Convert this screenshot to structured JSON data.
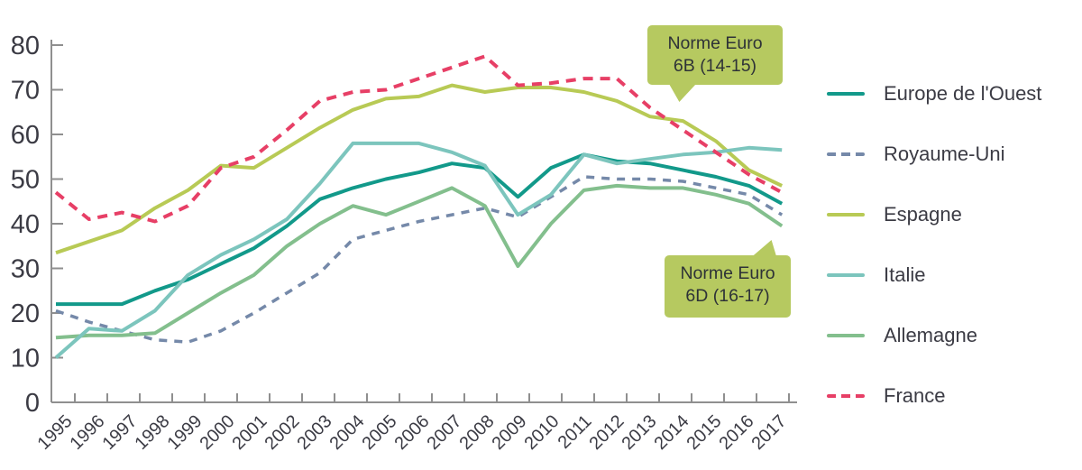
{
  "chart_data": {
    "type": "line",
    "title": "",
    "xlabel": "",
    "ylabel": "",
    "ylim": [
      0,
      80
    ],
    "yticks": [
      0,
      10,
      20,
      30,
      40,
      50,
      60,
      70,
      80
    ],
    "grid": false,
    "legend_position": "right",
    "x": [
      "1995",
      "1996",
      "1997",
      "1998",
      "1999",
      "2000",
      "2001",
      "2002",
      "2003",
      "2004",
      "2005",
      "2006",
      "2007",
      "2008",
      "2009",
      "2010",
      "2011",
      "2012",
      "2013",
      "2014",
      "2015",
      "2016",
      "2017"
    ],
    "series": [
      {
        "name": "Europe de l'Ouest",
        "color": "#12998a",
        "style": "solid",
        "width": 4,
        "values": [
          22,
          22,
          22,
          25,
          27.5,
          31,
          34.5,
          39.5,
          45.5,
          48,
          50,
          51.5,
          53.5,
          52.5,
          46,
          52.5,
          55.5,
          54,
          53.5,
          52,
          50.5,
          48.5,
          44.5
        ]
      },
      {
        "name": "Royaume-Uni",
        "color": "#7589a9",
        "style": "dashed",
        "width": 3.5,
        "values": [
          20.5,
          18,
          16,
          14,
          13.5,
          16,
          20,
          24.5,
          29,
          36.5,
          38.5,
          40.5,
          42,
          43.5,
          41.5,
          46,
          50.5,
          50,
          50,
          49.5,
          48,
          46.5,
          42
        ]
      },
      {
        "name": "Espagne",
        "color": "#b8ca55",
        "style": "solid",
        "width": 4,
        "values": [
          33.5,
          36,
          38.5,
          43.5,
          47.5,
          53,
          52.5,
          57,
          61.5,
          65.5,
          68,
          68.5,
          71,
          69.5,
          70.5,
          70.5,
          69.5,
          67.5,
          64,
          63,
          58.5,
          52,
          48.5
        ]
      },
      {
        "name": "Italie",
        "color": "#7cc5bd",
        "style": "solid",
        "width": 4,
        "values": [
          10,
          16.5,
          16,
          20.5,
          28.5,
          33,
          36.5,
          41,
          49,
          58,
          58,
          58,
          56,
          53,
          42,
          46.5,
          55.5,
          53.5,
          54.5,
          55.5,
          56,
          57,
          56.5
        ]
      },
      {
        "name": "Allemagne",
        "color": "#83bf8d",
        "style": "solid",
        "width": 4,
        "values": [
          14.5,
          15,
          15,
          15.5,
          20,
          24.5,
          28.5,
          35,
          40,
          44,
          42,
          45,
          48,
          44,
          30.5,
          40,
          47.5,
          48.5,
          48,
          48,
          46.5,
          44.5,
          39.5
        ]
      },
      {
        "name": "France",
        "color": "#e73f66",
        "style": "dashed",
        "width": 4,
        "values": [
          47,
          41,
          42.5,
          40.5,
          44,
          52.5,
          55,
          61,
          67.5,
          69.5,
          70,
          72.5,
          75,
          77.5,
          71,
          71.5,
          72.5,
          72.5,
          66,
          61,
          56,
          51,
          47
        ]
      }
    ],
    "annotations": [
      {
        "line1": "Norme Euro",
        "line2": "6B (14-15)"
      },
      {
        "line1": "Norme Euro",
        "line2": "6D (16-17)"
      }
    ],
    "annotation_color": "#b6c960"
  },
  "colors": {
    "axis": "#8f8f8f",
    "text": "#3b3b44",
    "background": "#ffffff"
  }
}
